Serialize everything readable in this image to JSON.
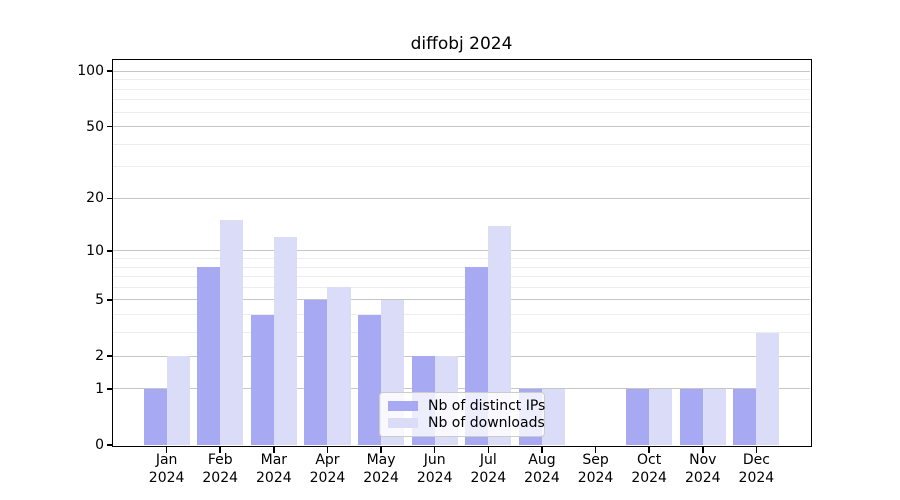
{
  "figure": {
    "title": "diffobj 2024"
  },
  "chart_data": {
    "type": "bar",
    "title": "diffobj 2024",
    "months": [
      "Jan",
      "Feb",
      "Mar",
      "Apr",
      "May",
      "Jun",
      "Jul",
      "Aug",
      "Sep",
      "Oct",
      "Nov",
      "Dec"
    ],
    "year": "2024",
    "categories": [
      "Jan 2024",
      "Feb 2024",
      "Mar 2024",
      "Apr 2024",
      "May 2024",
      "Jun 2024",
      "Jul 2024",
      "Aug 2024",
      "Sep 2024",
      "Oct 2024",
      "Nov 2024",
      "Dec 2024"
    ],
    "series": [
      {
        "name": "Nb of distinct IPs",
        "color": "#a7a9f3",
        "values": [
          1,
          8,
          4,
          5,
          4,
          2,
          8,
          1,
          0,
          1,
          1,
          1
        ]
      },
      {
        "name": "Nb of downloads",
        "color": "#dadcf8",
        "values": [
          2,
          15,
          12,
          6,
          5,
          2,
          14,
          1,
          0,
          1,
          1,
          3
        ]
      }
    ],
    "y_scale": "log1p",
    "y_ticks_major": [
      0,
      1,
      2,
      5,
      10,
      20,
      50,
      100
    ],
    "y_ticks_minor": [
      3,
      4,
      6,
      7,
      8,
      9,
      30,
      40,
      60,
      70,
      80,
      90
    ],
    "ylim": [
      0,
      115
    ],
    "grid": {
      "major_color": "#c6c6c6",
      "minor_color": "#ededed"
    },
    "legend_position": "lower center"
  }
}
